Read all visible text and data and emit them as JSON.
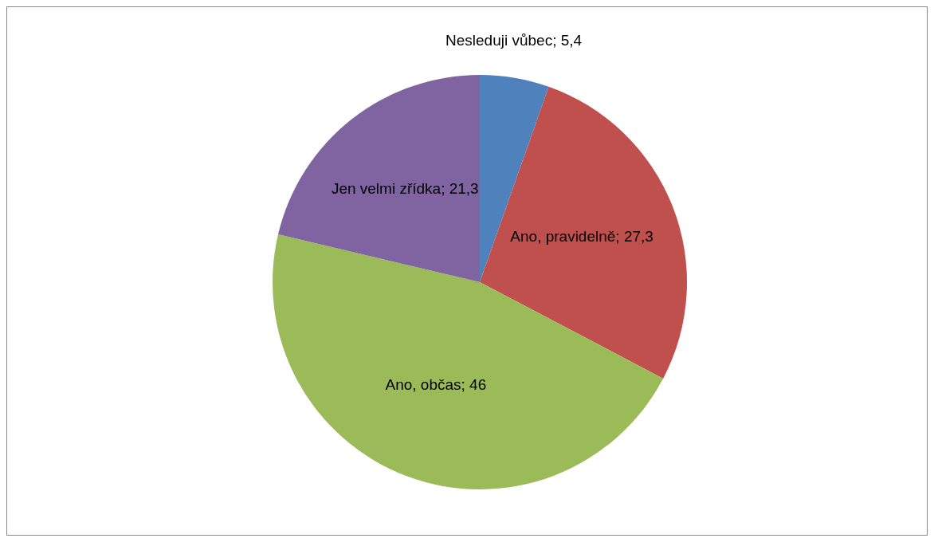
{
  "chart_data": {
    "type": "pie",
    "categories": [
      "Nesleduji vůbec",
      "Ano, pravidelně",
      "Ano, občas",
      "Jen velmi zřídka"
    ],
    "values": [
      5.4,
      27.3,
      46,
      21.3
    ],
    "value_labels": [
      "5,4",
      "27,3",
      "46",
      "21,3"
    ],
    "colors": [
      "#4f81bd",
      "#c0504d",
      "#9bbb59",
      "#8064a2"
    ],
    "legend": false
  }
}
